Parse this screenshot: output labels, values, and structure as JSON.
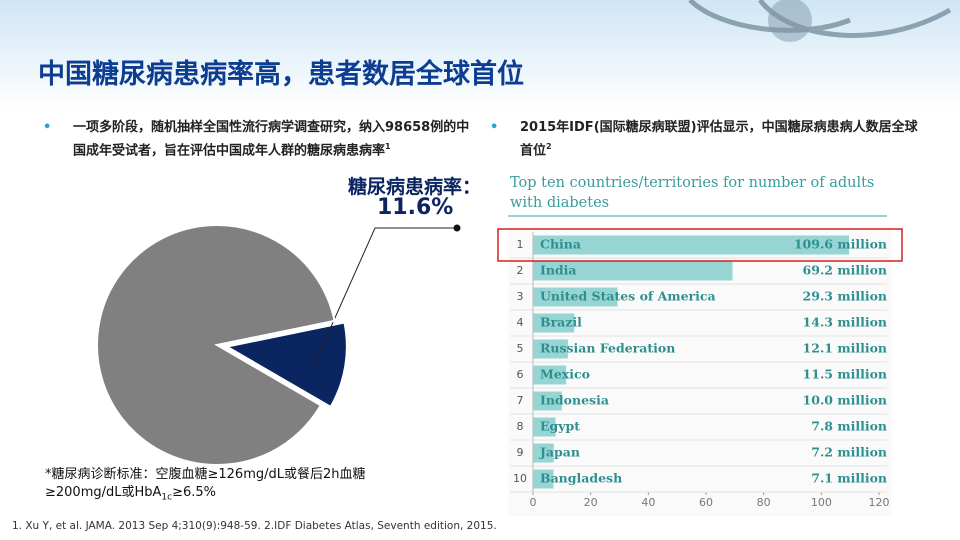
{
  "title": "中国糖尿病患病率高，患者数居全球首位",
  "bullets": [
    {
      "text": "一项多阶段，随机抽样全国性流行病学调查研究，纳入98658例的中国成年受试者，旨在评估中国成年人群的糖尿病患病率",
      "sup": "1"
    },
    {
      "text": "2015年IDF(国际糖尿病联盟)评估显示，中国糖尿病患病人数居全球首位",
      "sup": "2"
    }
  ],
  "criteria_note": {
    "before": "*糖尿病诊断标准：空腹血糖≥126mg/dL或餐后2h血糖≥200mg/dL或HbA",
    "sub": "1c",
    "after": "≥6.5%"
  },
  "references": "1. Xu Y, et al. JAMA. 2013 Sep 4;310(9):948-59.   2.IDF Diabetes Atlas, Seventh edition, 2015.",
  "chart_data": [
    {
      "type": "pie",
      "annotation": "糖尿病患病率：",
      "values": [
        11.6,
        88.4
      ],
      "value_labels": [
        "11.6%",
        null
      ],
      "colors": [
        "#0b2560",
        "#808080"
      ],
      "exploded": 0
    },
    {
      "type": "hbar",
      "title": "Top ten countries/territories for number of adults with diabetes",
      "ranks": [
        1,
        2,
        3,
        4,
        5,
        6,
        7,
        8,
        9,
        10
      ],
      "categories": [
        "China",
        "India",
        "United States of America",
        "Brazil",
        "Russian Federation",
        "Mexico",
        "Indonesia",
        "Egypt",
        "Japan",
        "Bangladesh"
      ],
      "values": [
        109.6,
        69.2,
        29.3,
        14.3,
        12.1,
        11.5,
        10.0,
        7.8,
        7.2,
        7.1
      ],
      "value_labels": [
        "109.6 million",
        "69.2 million",
        "29.3 million",
        "14.3 million",
        "12.1 million",
        "11.5 million",
        "10.0 million",
        "7.8 million",
        "7.2 million",
        "7.1 million"
      ],
      "color": "#97d4d4",
      "xlim": [
        0,
        120
      ],
      "xticks": [
        0,
        20,
        40,
        60,
        80,
        100,
        120
      ],
      "highlight": 0
    }
  ]
}
